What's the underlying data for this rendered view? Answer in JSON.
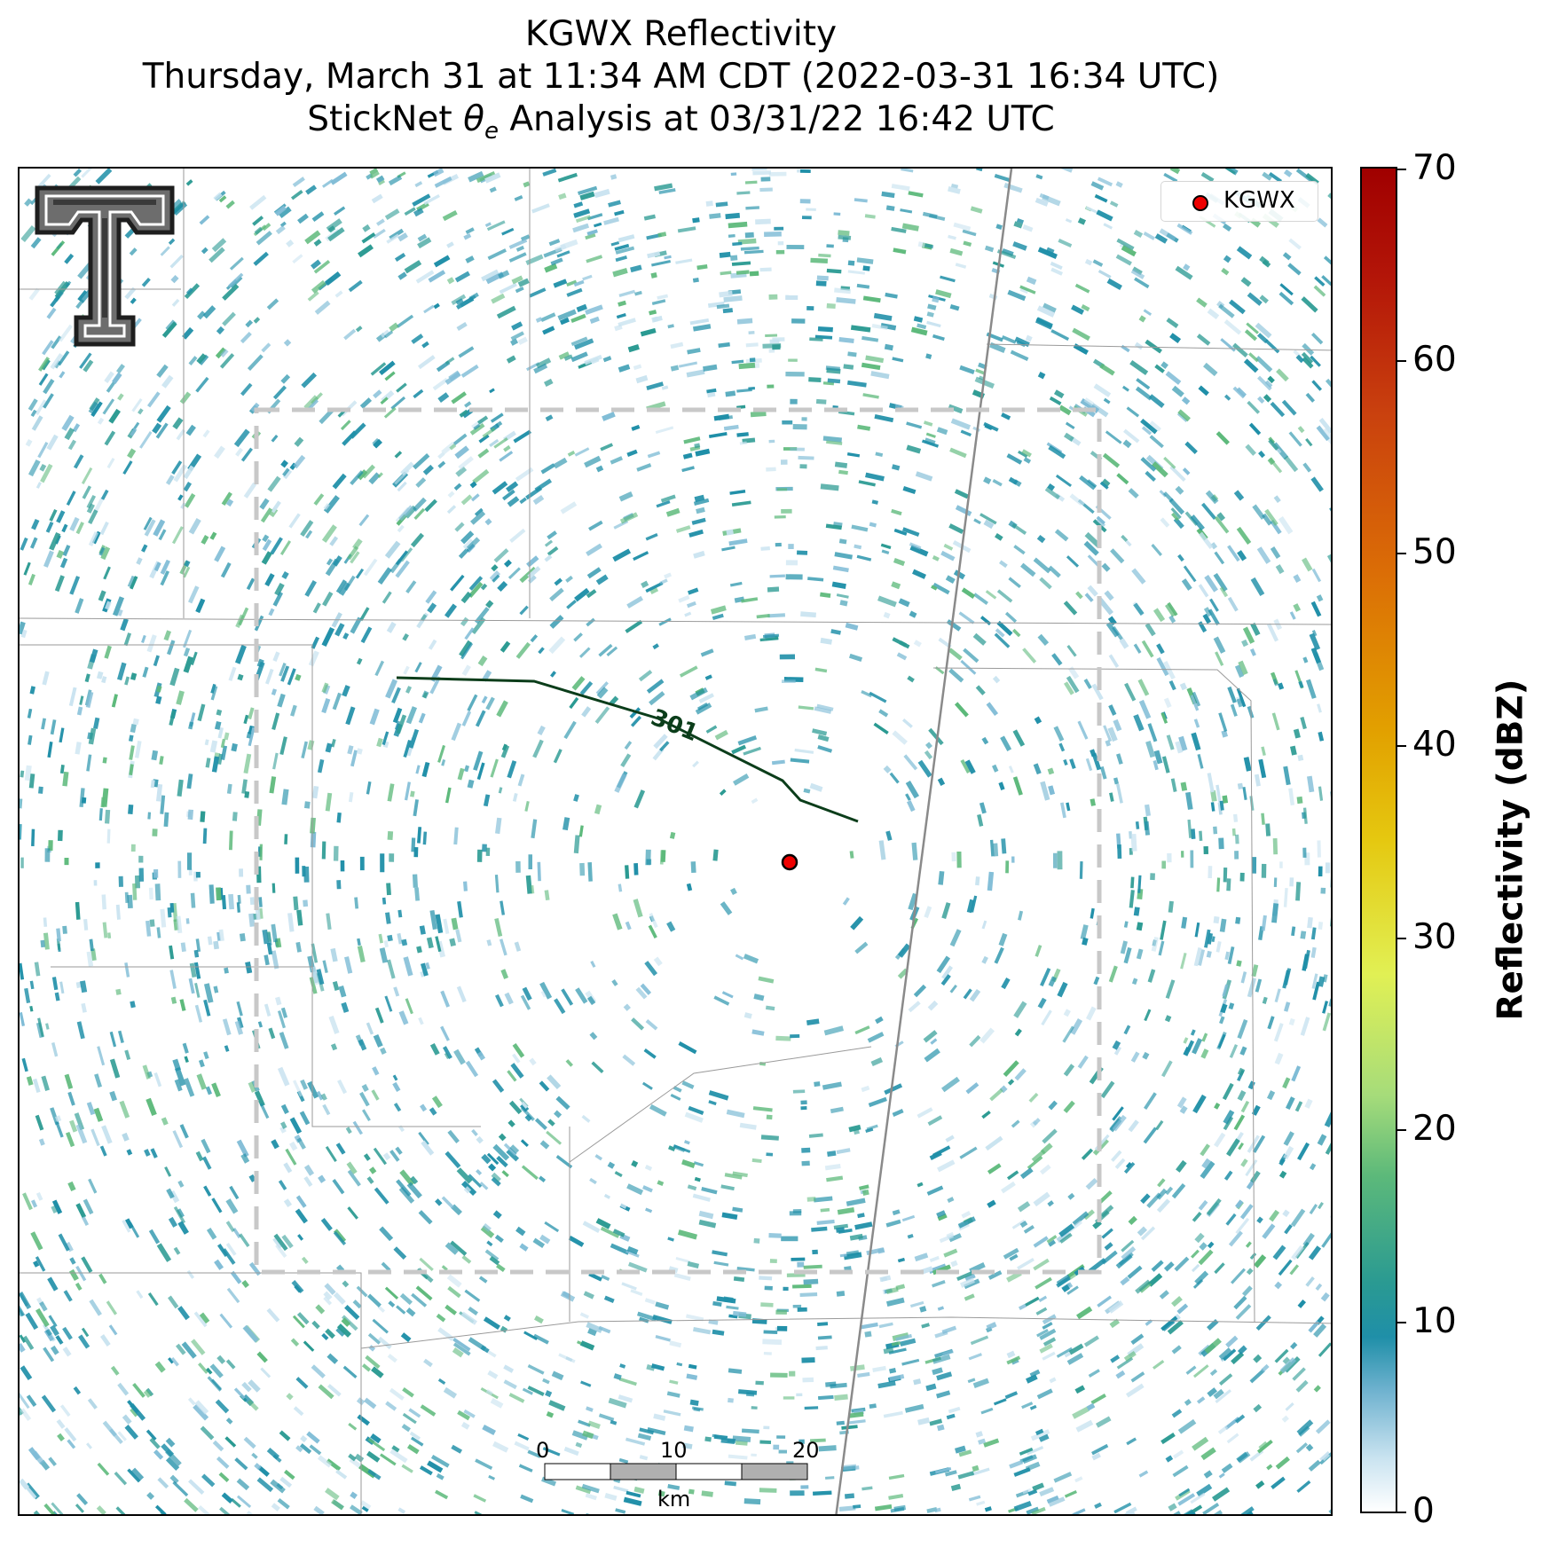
{
  "title": {
    "line1": "KGWX Reflectivity",
    "line2": "Thursday, March 31 at 11:34 AM CDT (2022-03-31 16:34 UTC)",
    "line3_prefix": "StickNet ",
    "line3_symbol": "θ",
    "line3_subscript": "e",
    "line3_suffix": " Analysis at 03/31/22 16:42 UTC"
  },
  "legend": {
    "label": "KGWX",
    "marker_color": "#ee0000"
  },
  "contour": {
    "label": "301",
    "color": "#0b3d1a"
  },
  "colorbar": {
    "title": "Reflectivity (dBZ)",
    "ticks": [
      "70",
      "60",
      "50",
      "40",
      "30",
      "20",
      "10",
      "0"
    ]
  },
  "scalebar": {
    "labels": [
      "0",
      "10",
      "20"
    ],
    "unit": "km"
  },
  "colors": {
    "teal": "#1f8fa8",
    "green": "#5cb97a",
    "light_blue": "#c9e3f0",
    "analysis_box": "#c8c8c8",
    "highway": "#8a8a8a",
    "county_lines": "#9a9a9a"
  }
}
